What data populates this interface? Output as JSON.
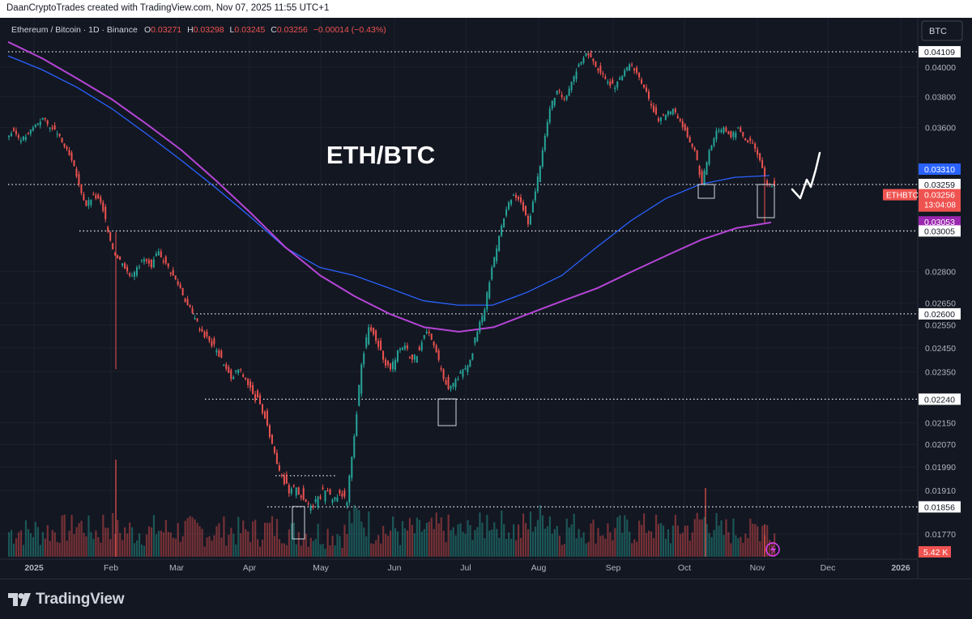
{
  "credit": "DaanCryptoTrades created with TradingView.com, Nov 07, 2025 11:55 UTC+1",
  "legend": {
    "symbol": "Ethereum / Bitcoin · 1D · Binance",
    "open_label": "O",
    "open": "0.03271",
    "high_label": "H",
    "high": "0.03298",
    "low_label": "L",
    "low": "0.03245",
    "close_label": "C",
    "close": "0.03256",
    "change": "−0.00014 (−0.43%)"
  },
  "annotation_title": "ETH/BTC",
  "quote_currency_button": "BTC",
  "brand": "TradingView",
  "colors": {
    "background": "#131722",
    "up": "#26a69a",
    "down": "#ef5350",
    "ma_fast": "#2962ff",
    "ma_slow": "#9c27b0",
    "grid": "#1e222d"
  },
  "chart_data": {
    "type": "candlestick",
    "x_ticks": [
      "2025",
      "Feb",
      "Mar",
      "Apr",
      "May",
      "Jun",
      "Jul",
      "Aug",
      "Sep",
      "Oct",
      "Nov",
      "Dec",
      "2026"
    ],
    "y_ticks": [
      "0.04000",
      "0.03800",
      "0.03600",
      "0.02800",
      "0.02650",
      "0.02550",
      "0.02450",
      "0.02350",
      "0.02150",
      "0.02070",
      "0.01990",
      "0.01910",
      "0.01770"
    ],
    "price_labels": [
      {
        "value": "0.04109",
        "kind": "level"
      },
      {
        "value": "0.03310",
        "kind": "ma_fast"
      },
      {
        "value": "0.03259",
        "kind": "level"
      },
      {
        "value": "0.03256",
        "kind": "last",
        "tag": "ETHBTC",
        "countdown": "13:04:08"
      },
      {
        "value": "0.03053",
        "kind": "ma_slow"
      },
      {
        "value": "0.03005",
        "kind": "level"
      },
      {
        "value": "0.02600",
        "kind": "level"
      },
      {
        "value": "0.02240",
        "kind": "level"
      },
      {
        "value": "0.01856",
        "kind": "level"
      }
    ],
    "volume_label": "5.42 K",
    "horizontal_levels": [
      0.04109,
      0.03259,
      0.03005,
      0.026,
      0.0224,
      0.01856
    ],
    "candles": [
      [
        0.0354,
        0.0358
      ],
      [
        0.0358,
        0.0352
      ],
      [
        0.0352,
        0.0356
      ],
      [
        0.0356,
        0.0362
      ],
      [
        0.0362,
        0.0366
      ],
      [
        0.0366,
        0.036
      ],
      [
        0.036,
        0.0356
      ],
      [
        0.0356,
        0.0348
      ],
      [
        0.0348,
        0.034
      ],
      [
        0.034,
        0.0326
      ],
      [
        0.0326,
        0.0314
      ],
      [
        0.0314,
        0.032
      ],
      [
        0.032,
        0.0316
      ],
      [
        0.0316,
        0.03
      ],
      [
        0.03,
        0.0288
      ],
      [
        0.0288,
        0.0284
      ],
      [
        0.0284,
        0.0278
      ],
      [
        0.0278,
        0.0282
      ],
      [
        0.0282,
        0.0286
      ],
      [
        0.0286,
        0.0282
      ],
      [
        0.0282,
        0.029
      ],
      [
        0.029,
        0.0284
      ],
      [
        0.0284,
        0.0278
      ],
      [
        0.0278,
        0.0272
      ],
      [
        0.0272,
        0.0264
      ],
      [
        0.0264,
        0.0258
      ],
      [
        0.0258,
        0.0252
      ],
      [
        0.0252,
        0.0248
      ],
      [
        0.0248,
        0.0244
      ],
      [
        0.0244,
        0.0238
      ],
      [
        0.0238,
        0.0232
      ],
      [
        0.0232,
        0.0236
      ],
      [
        0.0236,
        0.0232
      ],
      [
        0.0232,
        0.0226
      ],
      [
        0.0226,
        0.0222
      ],
      [
        0.0222,
        0.0214
      ],
      [
        0.0214,
        0.0204
      ],
      [
        0.0204,
        0.0196
      ],
      [
        0.0196,
        0.019
      ],
      [
        0.019,
        0.0192
      ],
      [
        0.0192,
        0.0188
      ],
      [
        0.0188,
        0.0186
      ],
      [
        0.0186,
        0.0189
      ],
      [
        0.0189,
        0.0191
      ],
      [
        0.0191,
        0.0188
      ],
      [
        0.0188,
        0.019
      ],
      [
        0.019,
        0.0187
      ],
      [
        0.0187,
        0.021
      ],
      [
        0.021,
        0.0238
      ],
      [
        0.0238,
        0.0254
      ],
      [
        0.0254,
        0.0248
      ],
      [
        0.0248,
        0.024
      ],
      [
        0.024,
        0.0236
      ],
      [
        0.0236,
        0.0244
      ],
      [
        0.0244,
        0.0246
      ],
      [
        0.0246,
        0.024
      ],
      [
        0.024,
        0.0244
      ],
      [
        0.0244,
        0.0252
      ],
      [
        0.0252,
        0.0246
      ],
      [
        0.0246,
        0.0236
      ],
      [
        0.0236,
        0.0228
      ],
      [
        0.0228,
        0.0232
      ],
      [
        0.0232,
        0.0236
      ],
      [
        0.0236,
        0.024
      ],
      [
        0.024,
        0.0252
      ],
      [
        0.0252,
        0.0262
      ],
      [
        0.0262,
        0.0282
      ],
      [
        0.0282,
        0.0298
      ],
      [
        0.0298,
        0.0312
      ],
      [
        0.0312,
        0.032
      ],
      [
        0.032,
        0.0316
      ],
      [
        0.0316,
        0.0304
      ],
      [
        0.0304,
        0.0322
      ],
      [
        0.0322,
        0.0346
      ],
      [
        0.0346,
        0.0372
      ],
      [
        0.0372,
        0.0384
      ],
      [
        0.0384,
        0.0378
      ],
      [
        0.0378,
        0.039
      ],
      [
        0.039,
        0.0402
      ],
      [
        0.0402,
        0.041
      ],
      [
        0.041,
        0.0404
      ],
      [
        0.0404,
        0.0396
      ],
      [
        0.0396,
        0.039
      ],
      [
        0.039,
        0.0386
      ],
      [
        0.0386,
        0.0394
      ],
      [
        0.0394,
        0.0402
      ],
      [
        0.0402,
        0.0396
      ],
      [
        0.0396,
        0.0386
      ],
      [
        0.0386,
        0.0374
      ],
      [
        0.0374,
        0.0364
      ],
      [
        0.0364,
        0.0368
      ],
      [
        0.0368,
        0.0372
      ],
      [
        0.0372,
        0.0364
      ],
      [
        0.0364,
        0.0354
      ],
      [
        0.0354,
        0.0346
      ],
      [
        0.0346,
        0.0326
      ],
      [
        0.0326,
        0.0346
      ],
      [
        0.0346,
        0.0358
      ],
      [
        0.0358,
        0.036
      ],
      [
        0.036,
        0.0354
      ],
      [
        0.0354,
        0.036
      ],
      [
        0.036,
        0.0352
      ],
      [
        0.0352,
        0.035
      ],
      [
        0.035,
        0.034
      ],
      [
        0.034,
        0.0326
      ],
      [
        0.0326,
        0.0325
      ]
    ],
    "ma_fast": [
      0.0408,
      0.0398,
      0.0386,
      0.0372,
      0.0356,
      0.034,
      0.0324,
      0.0308,
      0.0292,
      0.0282,
      0.0278,
      0.0272,
      0.0266,
      0.0264,
      0.0264,
      0.027,
      0.0278,
      0.0292,
      0.0306,
      0.0318,
      0.0326,
      0.033,
      0.0331
    ],
    "ma_slow": [
      0.0418,
      0.0406,
      0.0392,
      0.0378,
      0.0362,
      0.0346,
      0.0328,
      0.031,
      0.0292,
      0.0278,
      0.0268,
      0.026,
      0.0254,
      0.0252,
      0.0254,
      0.026,
      0.0266,
      0.0272,
      0.028,
      0.0288,
      0.0296,
      0.0302,
      0.0305
    ]
  }
}
